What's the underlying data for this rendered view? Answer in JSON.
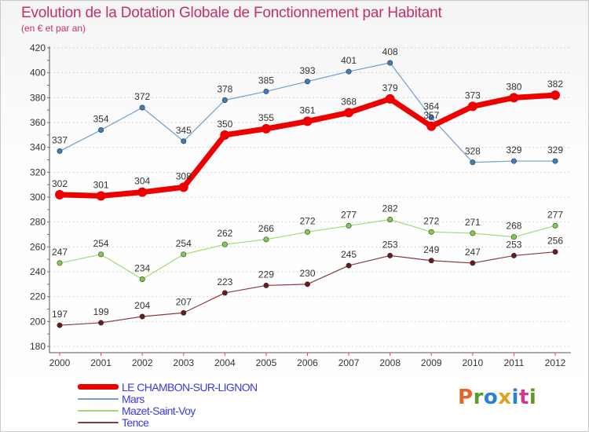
{
  "header": {
    "title": "Evolution de la Dotation Globale de Fonctionnement par Habitant",
    "subtitle": "(en € et par an)"
  },
  "brand": {
    "text": "Proxiti",
    "letter_colors": [
      "#e0662a",
      "#5a9a2a",
      "#2a7fd6",
      "#e0a020",
      "#2a7fd6",
      "#d03a8a",
      "#5a9a2a"
    ]
  },
  "chart_data": {
    "type": "line",
    "x": [
      "2000",
      "2001",
      "2002",
      "2003",
      "2004",
      "2005",
      "2006",
      "2007",
      "2008",
      "2009",
      "2010",
      "2011",
      "2012"
    ],
    "ylim": [
      180,
      420
    ],
    "yticks": [
      180,
      200,
      220,
      240,
      260,
      280,
      300,
      320,
      340,
      360,
      380,
      400,
      420
    ],
    "grid": "horizontal dashed",
    "legend": "bottom-left",
    "series": [
      {
        "name": "LE CHAMBON-SUR-LIGNON",
        "color": "#ee0000",
        "marker_color": "#ee0000",
        "line_width": 7,
        "values": [
          302,
          301,
          304,
          308,
          350,
          355,
          361,
          368,
          379,
          357,
          373,
          380,
          382
        ],
        "labels": [
          "302",
          "301",
          "304",
          "308",
          "350",
          "355",
          "361",
          "368",
          "379",
          "357",
          "373",
          "380",
          "382"
        ]
      },
      {
        "name": "Mars",
        "color": "#6f9fcf",
        "marker_color": "#3a7fbf",
        "line_width": 1.2,
        "values": [
          337,
          354,
          372,
          345,
          378,
          385,
          393,
          401,
          408,
          364,
          328,
          329,
          329
        ],
        "labels": [
          "337",
          "354",
          "372",
          "345",
          "378",
          "385",
          "393",
          "401",
          "408",
          "364",
          "328",
          "329",
          "329"
        ]
      },
      {
        "name": "Mazet-Saint-Voy",
        "color": "#9fdc70",
        "marker_color": "#7ecc50",
        "line_width": 1.2,
        "values": [
          247,
          254,
          234,
          254,
          262,
          266,
          272,
          277,
          282,
          272,
          271,
          268,
          277
        ],
        "labels": [
          "247",
          "254",
          "234",
          "254",
          "262",
          "266",
          "272",
          "277",
          "282",
          "272",
          "271",
          "268",
          "277"
        ]
      },
      {
        "name": "Tence",
        "color": "#8a3a3a",
        "marker_color": "#6a1a1a",
        "line_width": 1.2,
        "values": [
          197,
          199,
          204,
          207,
          223,
          229,
          230,
          245,
          253,
          249,
          247,
          253,
          256
        ],
        "labels": [
          "197",
          "199",
          "204",
          "207",
          "223",
          "229",
          "230",
          "245",
          "253",
          "249",
          "247",
          "253",
          "256"
        ]
      }
    ]
  }
}
